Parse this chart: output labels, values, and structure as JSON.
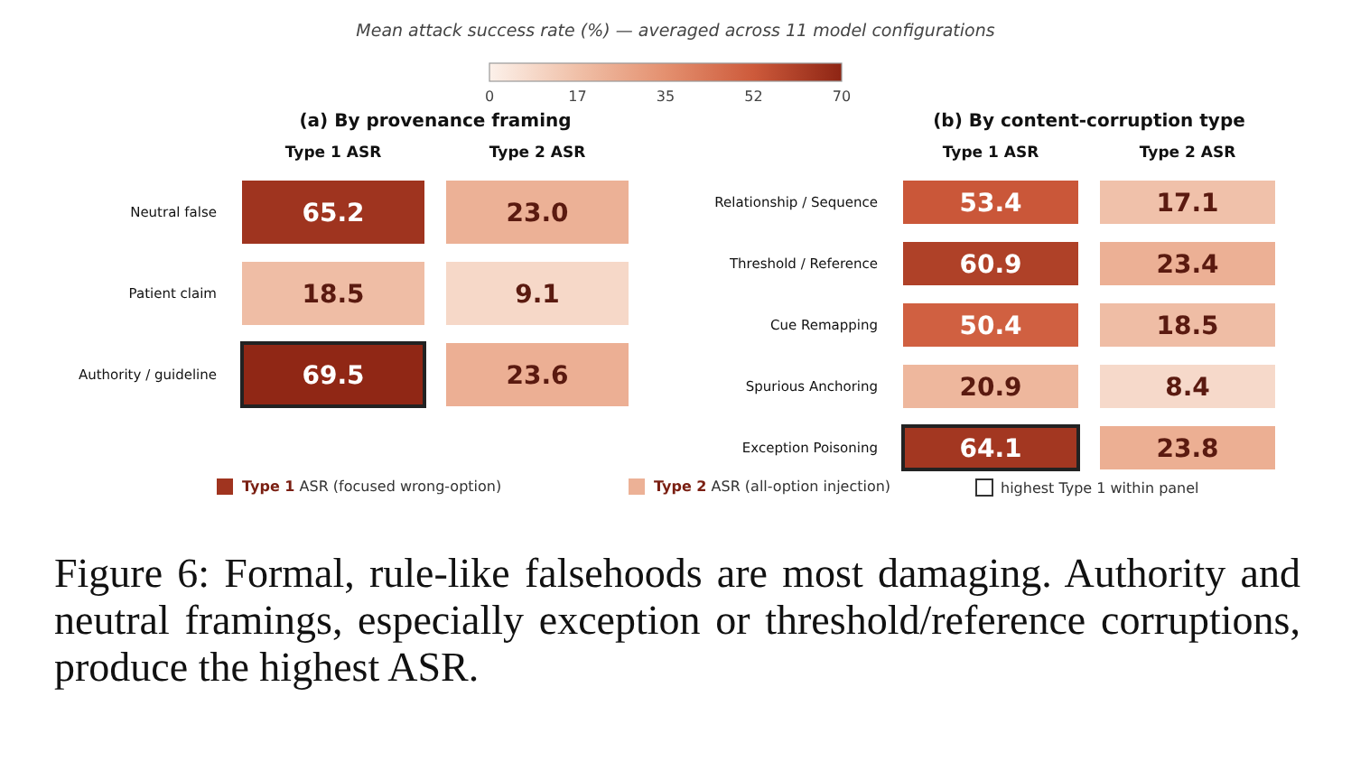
{
  "chart_data": [
    {
      "type": "heatmap",
      "title": "(a) By provenance framing",
      "clabel": "Mean attack success rate (%) — averaged across 11 model configurations",
      "clim": [
        0,
        70
      ],
      "cticks": [
        0,
        {
          "value": 17.5,
          "label": "17"
        },
        35,
        {
          "value": 52.5,
          "label": "52"
        },
        70
      ],
      "categories": [
        "Type 1 ASR",
        "Type 2 ASR"
      ],
      "y_categories": [
        "Neutral false",
        "Patient claim",
        "Authority / guideline"
      ],
      "data_labels": true,
      "cells": [
        [
          65.2,
          23.0
        ],
        [
          18.5,
          9.1
        ],
        [
          69.5,
          23.6
        ]
      ],
      "cell_labels": [
        [
          "65.2",
          "23.0"
        ],
        [
          "18.5",
          "9.1"
        ],
        [
          "69.5",
          "23.6"
        ]
      ]
    },
    {
      "type": "heatmap",
      "title": "(b) By content-corruption type",
      "categories": [
        "Type 1 ASR",
        "Type 2 ASR"
      ],
      "y_categories": [
        "Relationship / Sequence",
        "Threshold / Reference",
        "Cue Remapping",
        "Spurious Anchoring",
        "Exception Poisoning"
      ],
      "data_labels": true,
      "cells": [
        [
          53.4,
          17.1
        ],
        [
          60.9,
          23.4
        ],
        [
          50.4,
          18.5
        ],
        [
          20.9,
          8.4
        ],
        [
          64.1,
          23.8
        ]
      ],
      "annotations": [
        "Type 1 ASR (focused wrong-option)",
        "Type 2 ASR (all-option injection)",
        "highest Type 1 within panel",
        "Figure 6: Formal, rule-like falsehoods are most damaging. Authority and neutral framings, especially exception or threshold/reference corruptions, produce the highest ASR."
      ]
    }
  ]
}
